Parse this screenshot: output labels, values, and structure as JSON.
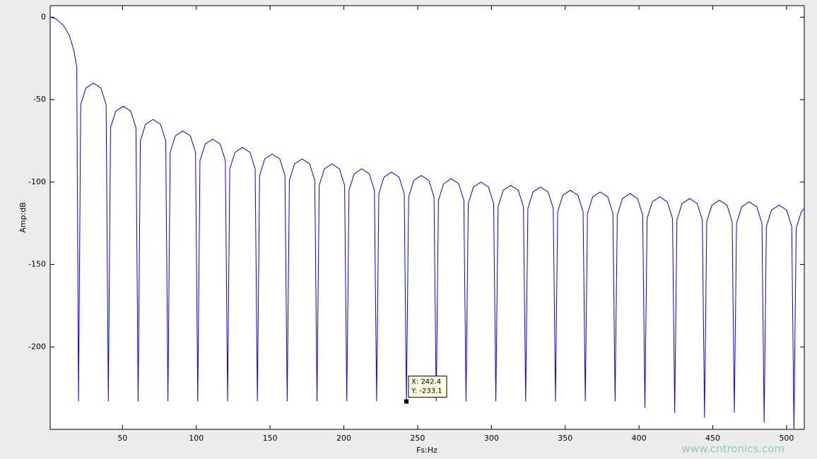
{
  "chart_data": {
    "type": "line",
    "x_label": "Fs:Hz",
    "y_label": "Amp:dB",
    "color": "#0000ff",
    "xlim": [
      1,
      512
    ],
    "ylim": [
      -250,
      7
    ],
    "xticks": [
      50,
      100,
      150,
      200,
      250,
      300,
      350,
      400,
      450,
      500
    ],
    "yticks": [
      0,
      -50,
      -100,
      -150,
      -200
    ],
    "x": [
      1,
      5,
      10,
      14,
      17,
      19,
      20.2,
      21.7,
      25.2,
      30.3,
      35.4,
      38.9,
      40.4,
      41.9,
      45.4,
      50.5,
      55.6,
      59.1,
      60.6,
      62.1,
      65.6,
      70.7,
      75.8,
      79.3,
      80.8,
      82.3,
      85.8,
      90.9,
      96.0,
      99.5,
      101.0,
      102.5,
      106.0,
      111.1,
      116.2,
      119.7,
      121.2,
      122.7,
      126.2,
      131.3,
      136.4,
      139.9,
      141.4,
      142.9,
      146.4,
      151.5,
      156.6,
      160.1,
      161.6,
      163.1,
      166.6,
      171.7,
      176.8,
      180.3,
      181.8,
      183.3,
      186.8,
      191.9,
      197.0,
      200.5,
      202.0,
      203.5,
      207.0,
      212.1,
      217.2,
      220.7,
      222.2,
      223.7,
      227.2,
      232.3,
      237.4,
      240.9,
      242.4,
      243.9,
      247.4,
      252.5,
      257.6,
      261.1,
      262.6,
      264.1,
      267.6,
      272.7,
      277.8,
      281.3,
      282.8,
      284.3,
      287.8,
      292.9,
      298.0,
      301.5,
      303.0,
      304.5,
      308.0,
      313.1,
      318.2,
      321.7,
      323.2,
      324.7,
      328.2,
      333.3,
      338.4,
      341.9,
      343.4,
      344.9,
      348.4,
      353.5,
      358.6,
      362.1,
      363.6,
      365.1,
      368.6,
      373.7,
      378.8,
      382.3,
      383.8,
      385.3,
      388.8,
      393.9,
      399.0,
      402.5,
      404.0,
      405.5,
      409.0,
      414.1,
      419.2,
      422.7,
      424.2,
      425.7,
      429.2,
      434.3,
      439.4,
      442.9,
      444.4,
      445.9,
      449.4,
      454.5,
      459.6,
      463.1,
      464.6,
      466.1,
      469.6,
      474.7,
      479.8,
      483.3,
      484.8,
      486.3,
      489.8,
      494.9,
      500.0,
      503.5,
      505.0,
      506.5,
      510.0,
      512
    ],
    "values": [
      0,
      -1,
      -5,
      -11,
      -20,
      -30,
      -233,
      -53,
      -43,
      -40,
      -43,
      -53,
      -233,
      -67,
      -57,
      -54,
      -57,
      -67,
      -233,
      -75,
      -65,
      -62,
      -65,
      -75,
      -233,
      -82,
      -72,
      -69,
      -72,
      -82,
      -233,
      -87,
      -77,
      -74,
      -77,
      -87,
      -233,
      -92,
      -82,
      -79,
      -82,
      -92,
      -233,
      -96,
      -86,
      -83,
      -86,
      -96,
      -233,
      -99,
      -89,
      -86,
      -89,
      -99,
      -233,
      -102,
      -92,
      -89,
      -92,
      -102,
      -233,
      -105,
      -95,
      -92,
      -95,
      -105,
      -233,
      -107,
      -97,
      -94,
      -97,
      -107,
      -233.1,
      -109,
      -99,
      -96,
      -99,
      -109,
      -233,
      -111,
      -101,
      -98,
      -101,
      -111,
      -233,
      -113,
      -103,
      -100,
      -103,
      -113,
      -233,
      -115,
      -105,
      -102,
      -105,
      -115,
      -233,
      -116,
      -106,
      -103,
      -106,
      -116,
      -233,
      -118,
      -108,
      -105,
      -108,
      -118,
      -233,
      -119,
      -109,
      -106,
      -109,
      -119,
      -233,
      -120,
      -110,
      -107,
      -110,
      -120,
      -237,
      -122,
      -112,
      -109,
      -112,
      -122,
      -240,
      -123,
      -113,
      -110,
      -113,
      -123,
      -243,
      -124,
      -114,
      -111,
      -114,
      -124,
      -240,
      -125,
      -115,
      -112,
      -115,
      -125,
      -246,
      -127,
      -117,
      -114,
      -117,
      -127,
      -250,
      -128,
      -118,
      -116
    ],
    "datatip": {
      "x": 242.4,
      "y": -233.1,
      "labels": [
        "X: 242.4",
        "Y: -233.1"
      ]
    },
    "watermark": "www.cntronics.com"
  }
}
